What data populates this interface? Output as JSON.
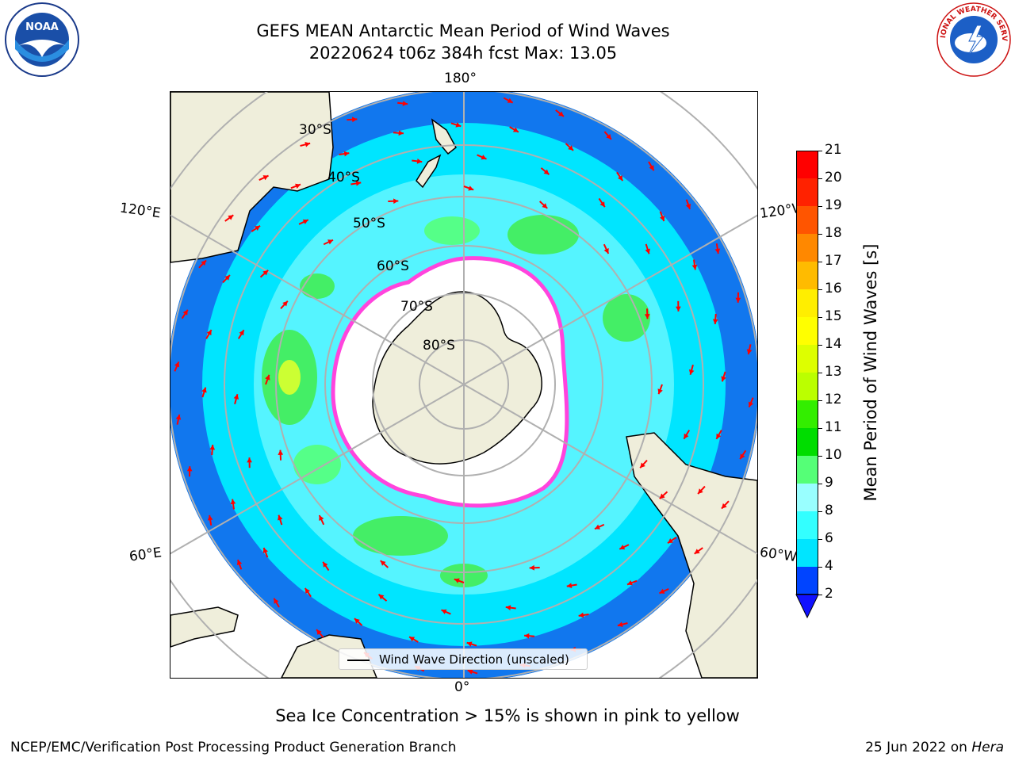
{
  "title_line1": "GEFS MEAN Antarctic Mean Period of Wind Waves",
  "title_line2": "20220624 t06z 384h fcst   Max: 13.05",
  "logos": {
    "left": "noaa-logo",
    "right": "national-weather-service-logo",
    "left_text": "NOAA",
    "right_text": "NATIONAL WEATHER SERVICE"
  },
  "lon_labels": {
    "top": "180°",
    "bottom": "0°",
    "left_upper": "120°E",
    "left_lower": "60°E",
    "right_upper": "120°W",
    "right_lower": "60°W"
  },
  "lat_labels": [
    "30°S",
    "40°S",
    "50°S",
    "60°S",
    "70°S",
    "80°S"
  ],
  "legend": {
    "label": "Wind Wave Direction (unscaled)"
  },
  "colorbar": {
    "label": "Mean Period of Wind Waves [s]",
    "ticks": [
      "2",
      "4",
      "6",
      "8",
      "9",
      "10",
      "11",
      "12",
      "13",
      "14",
      "15",
      "16",
      "17",
      "18",
      "19",
      "20",
      "21"
    ],
    "colors": [
      "#0044ff",
      "#00e5ff",
      "#33ffff",
      "#99ffff",
      "#55ff77",
      "#00dd00",
      "#33ee00",
      "#bbff00",
      "#ddff00",
      "#ffff00",
      "#ffee00",
      "#ffbb00",
      "#ff8800",
      "#ff5500",
      "#ff2200",
      "#ff0000"
    ],
    "extend_color": "#1111ff"
  },
  "colors": {
    "land": "#efeedb",
    "ocean_far": "#1177ee",
    "ocean_mid": "#00ddff",
    "ice": "#ffffff",
    "ice_edge": "#ff44dd",
    "arrow": "#ff0000",
    "grid": "#b0b0b0"
  },
  "footnote": "Sea Ice Concentration > 15% is shown in pink to yellow",
  "credit": "NCEP/EMC/Verification Post Processing Product Generation Branch",
  "date_prefix": "25 Jun 2022 on ",
  "date_host": "Hera"
}
